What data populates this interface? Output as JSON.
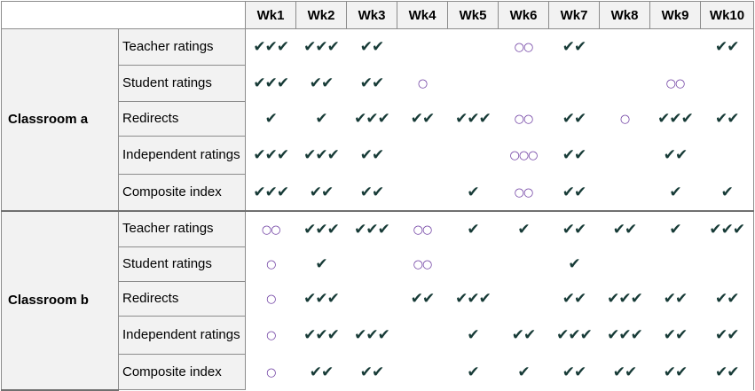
{
  "weeks": [
    "Wk1",
    "Wk2",
    "Wk3",
    "Wk4",
    "Wk5",
    "Wk6",
    "Wk7",
    "Wk8",
    "Wk9",
    "Wk10"
  ],
  "groups": [
    {
      "label": "Classroom a",
      "rows": [
        {
          "measure": "Teacher ratings",
          "cells": [
            "✔✔✔",
            "✔✔✔",
            "✔✔",
            "",
            "",
            "○○",
            "✔✔",
            "",
            "",
            "✔✔"
          ]
        },
        {
          "measure": "Student ratings",
          "cells": [
            "✔✔✔",
            "✔✔",
            "✔✔",
            "○",
            "",
            "",
            "",
            "",
            "○○",
            ""
          ]
        },
        {
          "measure": "Redirects",
          "cells": [
            "✔",
            "✔",
            "✔✔✔",
            "✔✔",
            "✔✔✔",
            "○○",
            "✔✔",
            "○",
            "✔✔✔",
            "✔✔"
          ]
        },
        {
          "measure": "Independent ratings",
          "cells": [
            "✔✔✔",
            "✔✔✔",
            "✔✔",
            "",
            "",
            "○○○",
            "✔✔",
            "",
            "✔✔",
            ""
          ]
        },
        {
          "measure": "Composite index",
          "cells": [
            "✔✔✔",
            "✔✔",
            "✔✔",
            "",
            "✔",
            "○○",
            "✔✔",
            "",
            "✔",
            "✔"
          ]
        }
      ]
    },
    {
      "label": "Classroom b",
      "rows": [
        {
          "measure": "Teacher ratings",
          "cells": [
            "○○",
            "✔✔✔",
            "✔✔✔",
            "○○",
            "✔",
            "✔",
            "✔✔",
            "✔✔",
            "✔",
            "✔✔✔"
          ]
        },
        {
          "measure": "Student ratings",
          "cells": [
            "○",
            "✔",
            "",
            "○○",
            "",
            "",
            "✔",
            "",
            "",
            ""
          ]
        },
        {
          "measure": "Redirects",
          "cells": [
            "○",
            "✔✔✔",
            "",
            "✔✔",
            "✔✔✔",
            "",
            "✔✔",
            "✔✔✔",
            "✔✔",
            "✔✔"
          ]
        },
        {
          "measure": "Independent ratings",
          "cells": [
            "○",
            "✔✔✔",
            "✔✔✔",
            "",
            "✔",
            "✔✔",
            "✔✔✔",
            "✔✔✔",
            "✔✔",
            "✔✔"
          ]
        },
        {
          "measure": "Composite index",
          "cells": [
            "○",
            "✔✔",
            "✔✔",
            "",
            "✔",
            "✔",
            "✔✔",
            "✔✔",
            "✔✔",
            "✔✔"
          ]
        }
      ]
    }
  ],
  "colors": {
    "check": "#173b37",
    "circle": "#6b3aa0",
    "header_bg": "#f2f2f2",
    "border": "#8c8c8c"
  }
}
